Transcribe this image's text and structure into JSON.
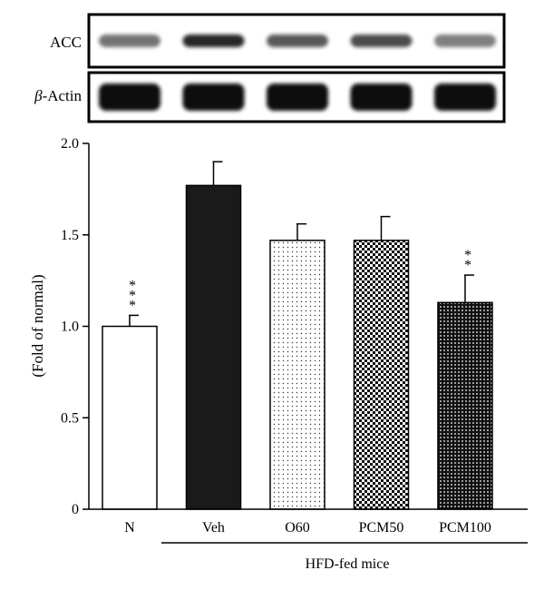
{
  "blots": [
    {
      "label": "ACC",
      "intensities": [
        0.55,
        0.85,
        0.65,
        0.7,
        0.5
      ]
    },
    {
      "label_prefix": "β",
      "label_rest": "-Actin",
      "intensities": [
        0.95,
        0.95,
        0.95,
        0.95,
        0.95
      ]
    }
  ],
  "chart_data": {
    "type": "bar",
    "categories": [
      "N",
      "Veh",
      "O60",
      "PCM50",
      "PCM100"
    ],
    "values": [
      1.0,
      1.77,
      1.47,
      1.47,
      1.13
    ],
    "errors": [
      0.06,
      0.13,
      0.09,
      0.13,
      0.15
    ],
    "significance": [
      "***",
      "",
      "",
      "",
      "**"
    ],
    "fills": [
      "white",
      "black",
      "dots-fine",
      "checker",
      "dots-dense"
    ],
    "ylabel": "(Fold of normal)",
    "ylim": [
      0,
      2.0
    ],
    "yticks": [
      "0",
      "0.5",
      "1.0",
      "1.5",
      "2.0"
    ],
    "group_label": "HFD-fed mice",
    "grid": false,
    "legend": "none"
  },
  "colors": {
    "bar_black": "#1a1a1a",
    "axis": "#000000"
  }
}
